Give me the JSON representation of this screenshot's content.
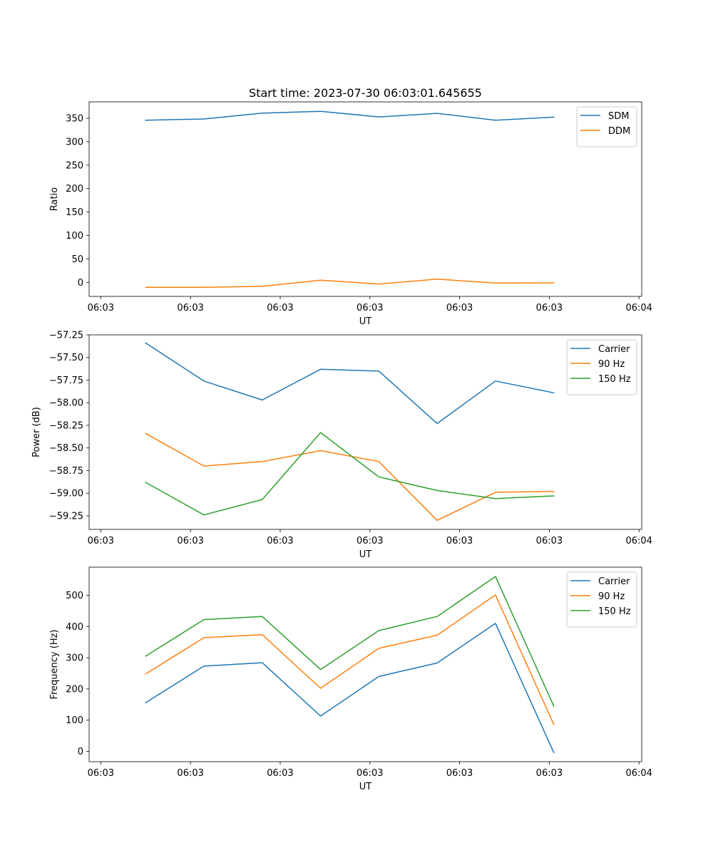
{
  "figure": {
    "title": "Start time: 2023-07-30 06:03:01.645655"
  },
  "chart_data": [
    {
      "type": "line",
      "title": "Start time: 2023-07-30 06:03:01.645655",
      "xlabel": "UT",
      "ylabel": "Ratio",
      "x_tick_labels": [
        "06:03",
        "06:03",
        "06:03",
        "06:03",
        "06:03",
        "06:03",
        "06:04"
      ],
      "x_tick_values": [
        0,
        1,
        2,
        3,
        4,
        5,
        6
      ],
      "xlim": [
        -0.13,
        6.03
      ],
      "x": [
        0.5,
        1.15,
        1.8,
        2.45,
        3.1,
        3.75,
        4.4,
        5.05
      ],
      "ylim": [
        -30,
        385
      ],
      "yticks": [
        0,
        50,
        100,
        150,
        200,
        250,
        300,
        350
      ],
      "legend": "top-right",
      "series": [
        {
          "name": "SDM",
          "color": "#1f77b4",
          "values": [
            346,
            348.5,
            361,
            365,
            353,
            360.5,
            346,
            352.5
          ]
        },
        {
          "name": "DDM",
          "color": "#ff7f0e",
          "values": [
            -10.5,
            -10.5,
            -8.5,
            4.5,
            -3.5,
            7,
            -1.5,
            -1
          ]
        }
      ]
    },
    {
      "type": "line",
      "xlabel": "UT",
      "ylabel": "Power (dB)",
      "x_tick_labels": [
        "06:03",
        "06:03",
        "06:03",
        "06:03",
        "06:03",
        "06:03",
        "06:04"
      ],
      "x_tick_values": [
        0,
        1,
        2,
        3,
        4,
        5,
        6
      ],
      "xlim": [
        -0.13,
        6.03
      ],
      "x": [
        0.5,
        1.15,
        1.8,
        2.45,
        3.1,
        3.75,
        4.4,
        5.05
      ],
      "ylim": [
        -59.4,
        -57.25
      ],
      "yticks": [
        -59.25,
        -59.0,
        -58.75,
        -58.5,
        -58.25,
        -58.0,
        -57.75,
        -57.5,
        -57.25
      ],
      "ytick_labels": [
        "−59.25",
        "−59.00",
        "−58.75",
        "−58.50",
        "−58.25",
        "−58.00",
        "−57.75",
        "−57.50",
        "−57.25"
      ],
      "legend": "top-right",
      "series": [
        {
          "name": "Carrier",
          "color": "#1f77b4",
          "values": [
            -57.34,
            -57.76,
            -57.97,
            -57.63,
            -57.65,
            -58.23,
            -57.76,
            -57.89
          ]
        },
        {
          "name": "90 Hz",
          "color": "#ff7f0e",
          "values": [
            -58.34,
            -58.7,
            -58.65,
            -58.53,
            -58.65,
            -59.3,
            -58.99,
            -58.98
          ]
        },
        {
          "name": "150 Hz",
          "color": "#2ca02c",
          "values": [
            -58.88,
            -59.24,
            -59.07,
            -58.33,
            -58.82,
            -58.97,
            -59.06,
            -59.03
          ]
        }
      ]
    },
    {
      "type": "line",
      "xlabel": "UT",
      "ylabel": "Frequency (Hz)",
      "x_tick_labels": [
        "06:03",
        "06:03",
        "06:03",
        "06:03",
        "06:03",
        "06:03",
        "06:04"
      ],
      "x_tick_values": [
        0,
        1,
        2,
        3,
        4,
        5,
        6
      ],
      "xlim": [
        -0.13,
        6.03
      ],
      "x": [
        0.5,
        1.15,
        1.8,
        2.45,
        3.1,
        3.75,
        4.4,
        5.05
      ],
      "ylim": [
        -33,
        590
      ],
      "yticks": [
        0,
        100,
        200,
        300,
        400,
        500
      ],
      "legend": "top-right",
      "series": [
        {
          "name": "Carrier",
          "color": "#1f77b4",
          "values": [
            156,
            273,
            284,
            113,
            240,
            283,
            410,
            -4
          ]
        },
        {
          "name": "90 Hz",
          "color": "#ff7f0e",
          "values": [
            248,
            364,
            374,
            202,
            330,
            372,
            501,
            86
          ]
        },
        {
          "name": "150 Hz",
          "color": "#2ca02c",
          "values": [
            305,
            422,
            432,
            262,
            387,
            432,
            560,
            145
          ]
        }
      ]
    }
  ]
}
